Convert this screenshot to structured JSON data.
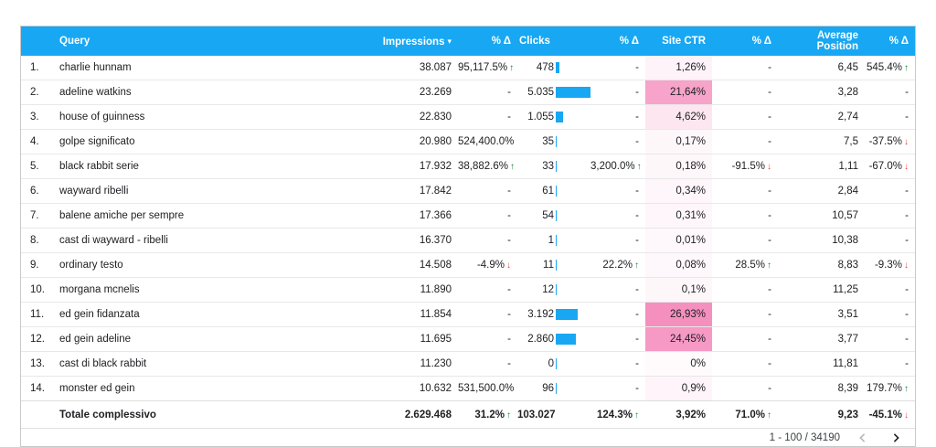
{
  "header": {
    "columns": [
      {
        "key": "index",
        "label": ""
      },
      {
        "key": "query",
        "label": "Query"
      },
      {
        "key": "impressions",
        "label": "Impressions",
        "sorted": "desc"
      },
      {
        "key": "impressions_delta",
        "label": "% Δ"
      },
      {
        "key": "clicks",
        "label": "Clicks"
      },
      {
        "key": "clicks_delta",
        "label": "% Δ"
      },
      {
        "key": "site_ctr",
        "label": "Site CTR"
      },
      {
        "key": "site_ctr_delta",
        "label": "% Δ"
      },
      {
        "key": "avg_position",
        "label": "Average Position"
      },
      {
        "key": "avg_position_delta",
        "label": "% Δ"
      }
    ]
  },
  "table": {
    "rows": [
      {
        "index": "1.",
        "query": "charlie hunnam",
        "impressions": "38.087",
        "impressions_delta": {
          "v": "95,117.5%",
          "d": "up"
        },
        "clicks": "478",
        "clicks_num": 478,
        "clicks_delta": null,
        "site_ctr": "1,26%",
        "site_ctr_pct": 1.26,
        "site_ctr_delta": null,
        "avg_position": "6,45",
        "avg_position_delta": {
          "v": "545.4%",
          "d": "up"
        }
      },
      {
        "index": "2.",
        "query": "adeline watkins",
        "impressions": "23.269",
        "impressions_delta": null,
        "clicks": "5.035",
        "clicks_num": 5035,
        "clicks_delta": null,
        "site_ctr": "21,64%",
        "site_ctr_pct": 21.64,
        "site_ctr_delta": null,
        "avg_position": "3,28",
        "avg_position_delta": null
      },
      {
        "index": "3.",
        "query": "house of guinness",
        "impressions": "22.830",
        "impressions_delta": null,
        "clicks": "1.055",
        "clicks_num": 1055,
        "clicks_delta": null,
        "site_ctr": "4,62%",
        "site_ctr_pct": 4.62,
        "site_ctr_delta": null,
        "avg_position": "2,74",
        "avg_position_delta": null
      },
      {
        "index": "4.",
        "query": "golpe significato",
        "impressions": "20.980",
        "impressions_delta": {
          "v": "524,400.0%",
          "d": "up"
        },
        "clicks": "35",
        "clicks_num": 35,
        "clicks_delta": null,
        "site_ctr": "0,17%",
        "site_ctr_pct": 0.17,
        "site_ctr_delta": null,
        "avg_position": "7,5",
        "avg_position_delta": {
          "v": "-37.5%",
          "d": "down"
        }
      },
      {
        "index": "5.",
        "query": "black rabbit serie",
        "impressions": "17.932",
        "impressions_delta": {
          "v": "38,882.6%",
          "d": "up"
        },
        "clicks": "33",
        "clicks_num": 33,
        "clicks_delta": {
          "v": "3,200.0%",
          "d": "up"
        },
        "site_ctr": "0,18%",
        "site_ctr_pct": 0.18,
        "site_ctr_delta": {
          "v": "-91.5%",
          "d": "down"
        },
        "avg_position": "1,11",
        "avg_position_delta": {
          "v": "-67.0%",
          "d": "down"
        }
      },
      {
        "index": "6.",
        "query": "wayward ribelli",
        "impressions": "17.842",
        "impressions_delta": null,
        "clicks": "61",
        "clicks_num": 61,
        "clicks_delta": null,
        "site_ctr": "0,34%",
        "site_ctr_pct": 0.34,
        "site_ctr_delta": null,
        "avg_position": "2,84",
        "avg_position_delta": null
      },
      {
        "index": "7.",
        "query": "balene amiche per sempre",
        "impressions": "17.366",
        "impressions_delta": null,
        "clicks": "54",
        "clicks_num": 54,
        "clicks_delta": null,
        "site_ctr": "0,31%",
        "site_ctr_pct": 0.31,
        "site_ctr_delta": null,
        "avg_position": "10,57",
        "avg_position_delta": null
      },
      {
        "index": "8.",
        "query": "cast di wayward - ribelli",
        "impressions": "16.370",
        "impressions_delta": null,
        "clicks": "1",
        "clicks_num": 1,
        "clicks_delta": null,
        "site_ctr": "0,01%",
        "site_ctr_pct": 0.01,
        "site_ctr_delta": null,
        "avg_position": "10,38",
        "avg_position_delta": null
      },
      {
        "index": "9.",
        "query": "ordinary testo",
        "impressions": "14.508",
        "impressions_delta": {
          "v": "-4.9%",
          "d": "down"
        },
        "clicks": "11",
        "clicks_num": 11,
        "clicks_delta": {
          "v": "22.2%",
          "d": "up"
        },
        "site_ctr": "0,08%",
        "site_ctr_pct": 0.08,
        "site_ctr_delta": {
          "v": "28.5%",
          "d": "up"
        },
        "avg_position": "8,83",
        "avg_position_delta": {
          "v": "-9.3%",
          "d": "down"
        }
      },
      {
        "index": "10.",
        "query": "morgana mcnelis",
        "impressions": "11.890",
        "impressions_delta": null,
        "clicks": "12",
        "clicks_num": 12,
        "clicks_delta": null,
        "site_ctr": "0,1%",
        "site_ctr_pct": 0.1,
        "site_ctr_delta": null,
        "avg_position": "11,25",
        "avg_position_delta": null
      },
      {
        "index": "11.",
        "query": "ed gein fidanzata",
        "impressions": "11.854",
        "impressions_delta": null,
        "clicks": "3.192",
        "clicks_num": 3192,
        "clicks_delta": null,
        "site_ctr": "26,93%",
        "site_ctr_pct": 26.93,
        "site_ctr_delta": null,
        "avg_position": "3,51",
        "avg_position_delta": null
      },
      {
        "index": "12.",
        "query": "ed gein adeline",
        "impressions": "11.695",
        "impressions_delta": null,
        "clicks": "2.860",
        "clicks_num": 2860,
        "clicks_delta": null,
        "site_ctr": "24,45%",
        "site_ctr_pct": 24.45,
        "site_ctr_delta": null,
        "avg_position": "3,77",
        "avg_position_delta": null
      },
      {
        "index": "13.",
        "query": "cast di black rabbit",
        "impressions": "11.230",
        "impressions_delta": null,
        "clicks": "0",
        "clicks_num": 0,
        "clicks_delta": null,
        "site_ctr": "0%",
        "site_ctr_pct": 0,
        "site_ctr_delta": null,
        "avg_position": "11,81",
        "avg_position_delta": null
      },
      {
        "index": "14.",
        "query": "monster ed gein",
        "impressions": "10.632",
        "impressions_delta": {
          "v": "531,500.0%",
          "d": "up"
        },
        "clicks": "96",
        "clicks_num": 96,
        "clicks_delta": null,
        "site_ctr": "0,9%",
        "site_ctr_pct": 0.9,
        "site_ctr_delta": null,
        "avg_position": "8,39",
        "avg_position_delta": {
          "v": "179.7%",
          "d": "up"
        }
      }
    ],
    "total": {
      "index": "",
      "query": "Totale complessivo",
      "impressions": "2.629.468",
      "impressions_delta": {
        "v": "31.2%",
        "d": "up"
      },
      "clicks": "103.027",
      "clicks_num": null,
      "clicks_delta": {
        "v": "124.3%",
        "d": "up"
      },
      "site_ctr": "3,92%",
      "site_ctr_pct": null,
      "site_ctr_delta": {
        "v": "71.0%",
        "d": "up"
      },
      "avg_position": "9,23",
      "avg_position_delta": {
        "v": "-45.1%",
        "d": "down"
      }
    }
  },
  "footer": {
    "range_label": "1 - 100 / 34190"
  },
  "icons": {
    "sort_caret": "▾",
    "up_arrow": "↑",
    "down_arrow": "↓",
    "prev": "chevron-left",
    "next": "chevron-right"
  },
  "colors": {
    "header_blue": "#18a7f2",
    "bar_blue": "#18a7f2",
    "heat_pink_rgb": "242,105,168",
    "up_green": "#188038",
    "down_red": "#e8453c",
    "border": "#c9c9c9",
    "row_line": "#e8e8e8",
    "text": "#202124"
  }
}
